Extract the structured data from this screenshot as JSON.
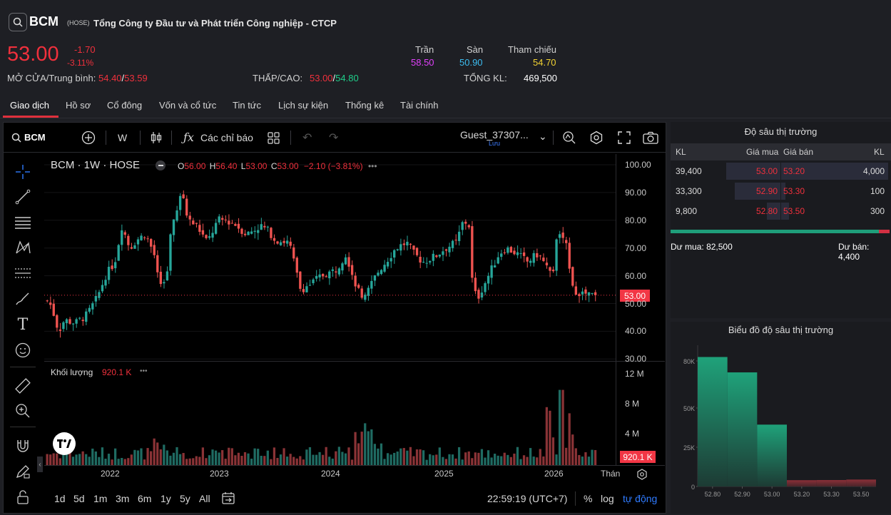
{
  "header": {
    "ticker": "BCM",
    "exchange": "(HOSE)",
    "company": "Tổng Công ty Đầu tư và Phát triển Công nghiệp - CTCP",
    "price": "53.00",
    "change": "-1.70",
    "change_pct": "-3.11%",
    "ceiling_label": "Trần",
    "ceiling": "58.50",
    "floor_label": "Sàn",
    "floor": "50.90",
    "ref_label": "Tham chiếu",
    "ref": "54.70",
    "open_avg_label": "MỞ CỬA/Trung bình:",
    "open": "54.40",
    "avg": "53.59",
    "low_high_label": "THẤP/CAO:",
    "low": "53.00",
    "high": "54.80",
    "vol_label": "TỔNG KL:",
    "vol": "469,500",
    "slash": "/"
  },
  "tabs": [
    {
      "label": "Giao dịch",
      "active": true
    },
    {
      "label": "Hồ sơ"
    },
    {
      "label": "Cổ đông"
    },
    {
      "label": "Vốn và cổ tức"
    },
    {
      "label": "Tin tức"
    },
    {
      "label": "Lịch sự kiện"
    },
    {
      "label": "Thống kê"
    },
    {
      "label": "Tài chính"
    }
  ],
  "toolbar": {
    "symbol": "BCM",
    "interval": "W",
    "indicators": "Các chỉ báo",
    "user": "Guest_37307...",
    "save": "Lưu"
  },
  "legend": {
    "title": "BCM · 1W · HOSE",
    "o_label": "O",
    "o": "56.00",
    "h_label": "H",
    "h": "56.40",
    "l_label": "L",
    "l": "53.00",
    "c_label": "C",
    "c": "53.00",
    "chg": "−2.10 (−3.81%)",
    "vol_label": "Khối lượng",
    "vol_value": "920.1 K"
  },
  "price_axis": [
    "100.00",
    "90.00",
    "80.00",
    "70.00",
    "60.00",
    "50.00",
    "40.00",
    "30.00"
  ],
  "vol_axis": [
    "12 M",
    "8 M",
    "4 M"
  ],
  "last_price_tag": "53.00",
  "last_vol_tag": "920.1 K",
  "years": [
    "2022",
    "2023",
    "2024",
    "2025",
    "2026"
  ],
  "axis_unit": "Thán",
  "ranges": [
    "1d",
    "5d",
    "1m",
    "3m",
    "6m",
    "1y",
    "5y",
    "All"
  ],
  "clock": "22:59:19 (UTC+7)",
  "pct_btn": "%",
  "log_btn": "log",
  "auto_btn": "tự động",
  "colors": {
    "up": "#26a69a",
    "down": "#ef5350",
    "accent": "#e0303c"
  },
  "depth": {
    "title": "Độ sâu thị trường",
    "headers": {
      "kl": "KL",
      "buy": "Giá mua",
      "sell": "Giá bán",
      "kl2": "KL"
    },
    "rows": [
      {
        "buy_vol": "39,400",
        "buy": "53.00",
        "sell": "53.20",
        "sell_vol": "4,000"
      },
      {
        "buy_vol": "33,300",
        "buy": "52.90",
        "sell": "53.30",
        "sell_vol": "100"
      },
      {
        "buy_vol": "9,800",
        "buy": "52.80",
        "sell": "53.50",
        "sell_vol": "300"
      }
    ],
    "buy_rest_label": "Dư mua:",
    "buy_rest": "82,500",
    "sell_rest_label": "Dư bán:",
    "sell_rest": "4,400"
  },
  "depth_chart": {
    "title": "Biểu đồ độ sâu thị trường",
    "y_ticks": [
      "80K",
      "50K",
      "25K",
      "0"
    ],
    "x_ticks": [
      "52.80",
      "52.90",
      "53.00",
      "53.20",
      "53.30",
      "53.50"
    ],
    "cum_buy": [
      82500,
      72700,
      39400
    ],
    "cum_sell": [
      4000,
      4100,
      4400
    ],
    "ymax": 90000
  }
}
